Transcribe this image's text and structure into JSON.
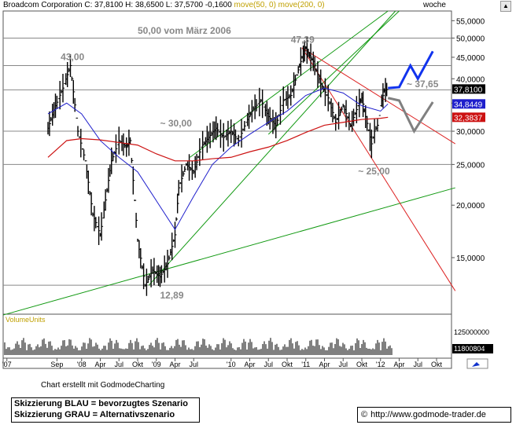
{
  "header": {
    "symbol": "Broadcom Corporation",
    "stats": "C: 37,8100 H: 38,6500 L: 37,5700 -0,1600",
    "ma_label": "move(50, 0) move(200, 0)",
    "period": "woche"
  },
  "colors": {
    "ma50": "#1f1fcc",
    "ma200": "#cc1111",
    "trend_green": "#119911",
    "trend_red": "#dd2222",
    "scenario_blue": "#1133ee",
    "scenario_gray": "#808080",
    "hline": "#888888",
    "price": "#000000",
    "volume_label": "#c0a000"
  },
  "chart_data": {
    "type": "bar",
    "title": "Broadcom Corporation",
    "y_scale": "log",
    "ylim": [
      11,
      58
    ],
    "y_ticks": [
      "55,0000",
      "50,0000",
      "45,0000",
      "40,0000",
      "35,0000",
      "30,0000",
      "25,0000",
      "20,0000",
      "15,0000"
    ],
    "x_ticks": [
      "'07",
      "Sep",
      "'08",
      "Apr",
      "Jul",
      "Okt",
      "'09",
      "Apr",
      "Jul",
      "'10",
      "Apr",
      "Jul",
      "Okt",
      "'11",
      "Apr",
      "Jul",
      "Okt",
      "'12",
      "Apr",
      "Jul",
      "Okt"
    ],
    "price_weekly": [
      [
        2007.55,
        30.5
      ],
      [
        2007.65,
        34.5
      ],
      [
        2007.75,
        38.0
      ],
      [
        2007.85,
        43.0
      ],
      [
        2007.95,
        30.0
      ],
      [
        2008.05,
        25.5
      ],
      [
        2008.15,
        19.0
      ],
      [
        2008.25,
        17.0
      ],
      [
        2008.3,
        19.5
      ],
      [
        2008.4,
        25.5
      ],
      [
        2008.5,
        28.5
      ],
      [
        2008.6,
        27.5
      ],
      [
        2008.65,
        28.5
      ],
      [
        2008.75,
        16.5
      ],
      [
        2008.85,
        12.89
      ],
      [
        2008.95,
        14.0
      ],
      [
        2009.05,
        13.5
      ],
      [
        2009.15,
        14.5
      ],
      [
        2009.25,
        17.0
      ],
      [
        2009.3,
        22.0
      ],
      [
        2009.4,
        25.0
      ],
      [
        2009.5,
        24.0
      ],
      [
        2009.6,
        27.5
      ],
      [
        2009.7,
        29.0
      ],
      [
        2009.8,
        30.5
      ],
      [
        2009.9,
        29.0
      ],
      [
        2010.0,
        30.0
      ],
      [
        2010.1,
        28.5
      ],
      [
        2010.2,
        31.5
      ],
      [
        2010.3,
        34.0
      ],
      [
        2010.4,
        35.5
      ],
      [
        2010.5,
        32.5
      ],
      [
        2010.6,
        31.0
      ],
      [
        2010.7,
        35.5
      ],
      [
        2010.8,
        36.5
      ],
      [
        2010.9,
        42.0
      ],
      [
        2010.95,
        45.0
      ],
      [
        2011.0,
        47.39
      ],
      [
        2011.05,
        45.5
      ],
      [
        2011.1,
        44.0
      ],
      [
        2011.2,
        39.0
      ],
      [
        2011.3,
        36.0
      ],
      [
        2011.4,
        31.5
      ],
      [
        2011.5,
        34.5
      ],
      [
        2011.6,
        31.0
      ],
      [
        2011.7,
        34.5
      ],
      [
        2011.75,
        36.0
      ],
      [
        2011.8,
        32.5
      ],
      [
        2011.88,
        28.0
      ],
      [
        2011.92,
        30.0
      ],
      [
        2011.96,
        31.0
      ],
      [
        2012.0,
        34.5
      ],
      [
        2012.05,
        37.5
      ],
      [
        2012.1,
        37.81
      ]
    ],
    "ma50_weekly": [
      [
        2007.55,
        33.0
      ],
      [
        2007.8,
        35.0
      ],
      [
        2008.0,
        33.0
      ],
      [
        2008.25,
        28.5
      ],
      [
        2008.5,
        26.0
      ],
      [
        2008.75,
        24.0
      ],
      [
        2009.0,
        20.5
      ],
      [
        2009.25,
        17.5
      ],
      [
        2009.5,
        21.0
      ],
      [
        2009.75,
        25.0
      ],
      [
        2010.0,
        27.5
      ],
      [
        2010.25,
        29.5
      ],
      [
        2010.5,
        31.5
      ],
      [
        2010.75,
        33.5
      ],
      [
        2011.0,
        36.5
      ],
      [
        2011.25,
        38.0
      ],
      [
        2011.5,
        37.0
      ],
      [
        2011.75,
        34.5
      ],
      [
        2012.0,
        33.5
      ],
      [
        2012.1,
        34.8449
      ]
    ],
    "ma200_weekly": [
      [
        2007.55,
        26.0
      ],
      [
        2007.8,
        28.5
      ],
      [
        2008.0,
        28.8
      ],
      [
        2008.25,
        28.6
      ],
      [
        2008.5,
        28.2
      ],
      [
        2008.75,
        27.8
      ],
      [
        2009.0,
        26.5
      ],
      [
        2009.25,
        25.5
      ],
      [
        2009.5,
        25.5
      ],
      [
        2009.75,
        25.8
      ],
      [
        2010.0,
        26.0
      ],
      [
        2010.25,
        26.8
      ],
      [
        2010.5,
        27.5
      ],
      [
        2010.75,
        28.5
      ],
      [
        2011.0,
        29.8
      ],
      [
        2011.25,
        31.0
      ],
      [
        2011.5,
        31.5
      ],
      [
        2011.75,
        32.0
      ],
      [
        2012.0,
        32.2
      ],
      [
        2012.1,
        32.3837
      ]
    ],
    "horizontal_levels": [
      50.0,
      43.0,
      37.65,
      30.0,
      25.0,
      12.89
    ],
    "value_badges": [
      {
        "value": "37,8100",
        "bg": "#000000",
        "fg": "#ffffff"
      },
      {
        "value": "34,8449",
        "bg": "#1f1fcc",
        "fg": "#ffffff"
      },
      {
        "value": "32,3837",
        "bg": "#cc1111",
        "fg": "#ffffff"
      }
    ],
    "annotations": [
      {
        "text": "50,00 vom März 2006",
        "x": 2008.75,
        "y": 51.2
      },
      {
        "text": "43,00",
        "x": 2007.72,
        "y": 44.3
      },
      {
        "text": "47,39",
        "x": 2010.8,
        "y": 48.7
      },
      {
        "text": "~ 30,00",
        "x": 2009.05,
        "y": 30.8
      },
      {
        "text": "~ 37,65",
        "x": 2012.35,
        "y": 38.2
      },
      {
        "text": "~ 25,00",
        "x": 2011.7,
        "y": 23.7
      },
      {
        "text": "12,89",
        "x": 2009.05,
        "y": 12.0
      }
    ],
    "trend_lines": [
      {
        "color": "green",
        "points": [
          [
            2006.95,
            10.95
          ],
          [
            2013.0,
            22.0
          ]
        ]
      },
      {
        "color": "green",
        "points": [
          [
            2008.9,
            12.89
          ],
          [
            2012.2,
            58.0
          ]
        ]
      },
      {
        "color": "green",
        "points": [
          [
            2009.45,
            26.0
          ],
          [
            2012.1,
            58.0
          ]
        ]
      },
      {
        "color": "green",
        "points": [
          [
            2010.5,
            29.5
          ],
          [
            2012.25,
            58.0
          ]
        ]
      },
      {
        "color": "red",
        "points": [
          [
            2010.95,
            47.39
          ],
          [
            2013.0,
            28.0
          ]
        ]
      },
      {
        "color": "red",
        "points": [
          [
            2010.95,
            47.39
          ],
          [
            2013.0,
            12.5
          ]
        ]
      }
    ],
    "scenario_blue": [
      [
        2012.1,
        38.0
      ],
      [
        2012.25,
        38.2
      ],
      [
        2012.4,
        43.0
      ],
      [
        2012.5,
        40.0
      ],
      [
        2012.7,
        46.5
      ]
    ],
    "scenario_gray": [
      [
        2012.1,
        36.0
      ],
      [
        2012.25,
        35.5
      ],
      [
        2012.45,
        30.0
      ],
      [
        2012.7,
        35.2
      ]
    ]
  },
  "volume_panel": {
    "label": "VolumeUnits",
    "ticks": [
      "125000000",
      "11800804"
    ]
  },
  "footer": {
    "credit": "Chart erstellt mit GodmodeCharting",
    "legend_line1": "Skizzierung BLAU = bevorzugtes Szenario",
    "legend_line2": "Skizzierung GRAU = Alternativszenario",
    "url": "http://www.godmode-trader.de"
  }
}
